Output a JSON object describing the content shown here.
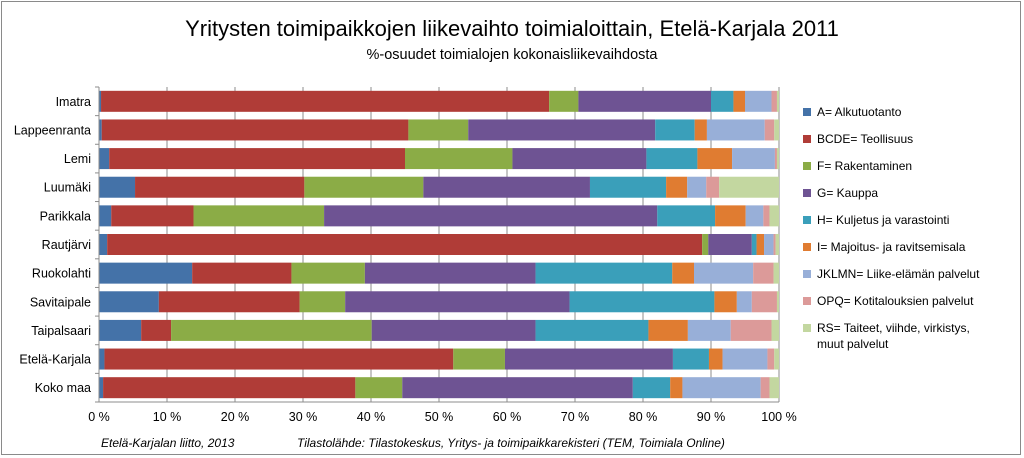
{
  "chart_data": {
    "type": "bar",
    "orientation": "horizontal",
    "stacked": "percent",
    "title": "Yritysten toimipaikkojen liikevaihto toimialoittain, Etelä-Karjala 2011",
    "subtitle": "%-osuudet toimialojen kokonaisliikevaihdosta",
    "categories": [
      "Imatra",
      "Lappeenranta",
      "Lemi",
      "Luumäki",
      "Parikkala",
      "Rautjärvi",
      "Ruokolahti",
      "Savitaipale",
      "Taipalsaari",
      "Etelä-Karjala",
      "Koko maa"
    ],
    "xlim": [
      0,
      100
    ],
    "xticks": [
      "0 %",
      "10 %",
      "20 %",
      "30 %",
      "40 %",
      "50 %",
      "60 %",
      "70 %",
      "80 %",
      "90 %",
      "100 %"
    ],
    "grid": true,
    "legend_position": "right",
    "series": [
      {
        "name": "A= Alkutuotanto",
        "color": "#4472a8",
        "values": [
          0.3,
          0.4,
          1.5,
          5.3,
          1.8,
          1.2,
          13.7,
          8.8,
          6.2,
          0.8,
          0.6
        ]
      },
      {
        "name": "BCDE= Teollisuus",
        "color": "#b03c37",
        "values": [
          65.9,
          45.1,
          43.5,
          24.9,
          12.1,
          87.5,
          14.6,
          20.7,
          4.4,
          51.3,
          37.1
        ]
      },
      {
        "name": "F= Rakentaminen",
        "color": "#8bac46",
        "values": [
          4.3,
          8.8,
          15.8,
          17.5,
          19.2,
          0.9,
          10.8,
          6.7,
          29.5,
          7.6,
          6.9
        ]
      },
      {
        "name": "G= Kauppa",
        "color": "#6e5393",
        "values": [
          19.5,
          27.5,
          19.7,
          24.5,
          49.0,
          6.4,
          25.1,
          33.0,
          24.1,
          24.7,
          33.9
        ]
      },
      {
        "name": "H= Kuljetus ja varastointi",
        "color": "#3a9fba",
        "values": [
          3.3,
          5.8,
          7.5,
          11.2,
          8.5,
          0.7,
          20.1,
          21.3,
          16.6,
          5.3,
          5.5
        ]
      },
      {
        "name": "I= Majoitus- ja ravitsemisala",
        "color": "#e07c31",
        "values": [
          1.7,
          1.8,
          5.1,
          3.1,
          4.5,
          1.1,
          3.2,
          3.3,
          5.8,
          2.0,
          1.8
        ]
      },
      {
        "name": "JKLMN= Liike-elämän palvelut",
        "color": "#98afd8",
        "values": [
          3.9,
          8.5,
          6.3,
          2.8,
          2.6,
          1.4,
          8.7,
          2.2,
          6.3,
          6.6,
          11.5
        ]
      },
      {
        "name": "OPQ= Kotitalouksien palvelut",
        "color": "#dc9a99",
        "values": [
          0.8,
          1.4,
          0.3,
          1.9,
          0.9,
          0.3,
          3.0,
          3.7,
          6.0,
          1.0,
          1.3
        ]
      },
      {
        "name": "RS= Taiteet, viihde, virkistys, muut palvelut",
        "legend_lines": [
          "RS= Taiteet, viihde, virkistys,",
          "muut palvelut"
        ],
        "color": "#c3d7a0",
        "values": [
          0.3,
          0.7,
          0.3,
          8.8,
          1.4,
          0.5,
          0.8,
          0.3,
          1.1,
          0.7,
          1.4
        ]
      }
    ]
  },
  "footer": {
    "source_org": "Etelä-Karjalan liitto, 2013",
    "source": "Tilastolähde: Tilastokeskus, Yritys- ja toimipaikkarekisteri (TEM, Toimiala Online)"
  }
}
